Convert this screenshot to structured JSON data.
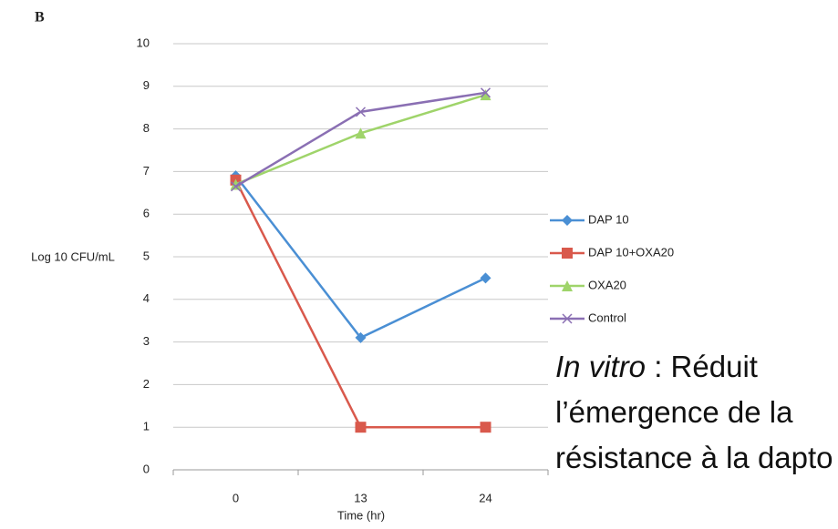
{
  "chart_data": {
    "type": "line",
    "panel_label": "B",
    "y_label": "Log 10 CFU/mL",
    "x_label": "Time (hr)",
    "categories": [
      "0",
      "13",
      "24"
    ],
    "series": [
      {
        "name": "DAP 10",
        "color": "#4a8fd4",
        "marker": "diamond",
        "values": [
          6.9,
          3.1,
          4.5
        ]
      },
      {
        "name": "DAP 10+OXA20",
        "color": "#d9594c",
        "marker": "square",
        "values": [
          6.8,
          1.0,
          1.0
        ]
      },
      {
        "name": "OXA20",
        "color": "#9fd46a",
        "marker": "triangle",
        "values": [
          6.7,
          7.9,
          8.8
        ]
      },
      {
        "name": "Control",
        "color": "#8a6fb3",
        "marker": "x",
        "values": [
          6.65,
          8.4,
          8.85
        ]
      }
    ],
    "ylim": [
      0,
      10
    ],
    "yticks": [
      0,
      1,
      2,
      3,
      4,
      5,
      6,
      7,
      8,
      9,
      10
    ],
    "grid": true,
    "legend": "right",
    "annotation": {
      "italic": "In vitro",
      "text": " : Réduit l’émergence de la résistance à la dapto"
    }
  }
}
